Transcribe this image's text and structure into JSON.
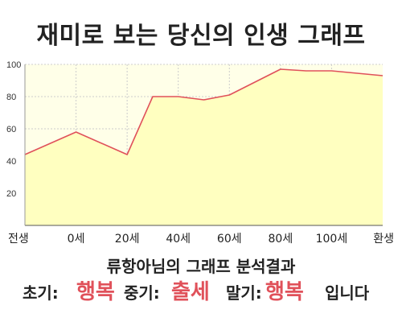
{
  "title": "재미로 보는 당신의 인생 그래프",
  "chart_data": {
    "type": "area",
    "x_labels": [
      "전생",
      "0세",
      "20세",
      "40세",
      "60세",
      "80세",
      "100세",
      "환생"
    ],
    "points": [
      {
        "x": 0,
        "y": 44
      },
      {
        "x": 1,
        "y": 58
      },
      {
        "x": 2,
        "y": 44
      },
      {
        "x": 2.5,
        "y": 80
      },
      {
        "x": 3,
        "y": 80
      },
      {
        "x": 3.5,
        "y": 78
      },
      {
        "x": 4,
        "y": 81
      },
      {
        "x": 4.5,
        "y": 89
      },
      {
        "x": 5,
        "y": 97
      },
      {
        "x": 5.5,
        "y": 96
      },
      {
        "x": 6,
        "y": 96
      },
      {
        "x": 7,
        "y": 93
      }
    ],
    "y_ticks": [
      20,
      40,
      60,
      80,
      100
    ],
    "ylim": [
      0,
      100
    ],
    "grid": true,
    "line_color": "#e0515a",
    "fill_color": "#ffffc0"
  },
  "analysis_title": "류항아님의 그래프 분석결과",
  "results": {
    "early_label": "초기:",
    "early_value": "행복",
    "middle_label": "중기:",
    "middle_value": "출세",
    "late_label": "말기:",
    "late_value": "행복",
    "ending": "입니다"
  }
}
